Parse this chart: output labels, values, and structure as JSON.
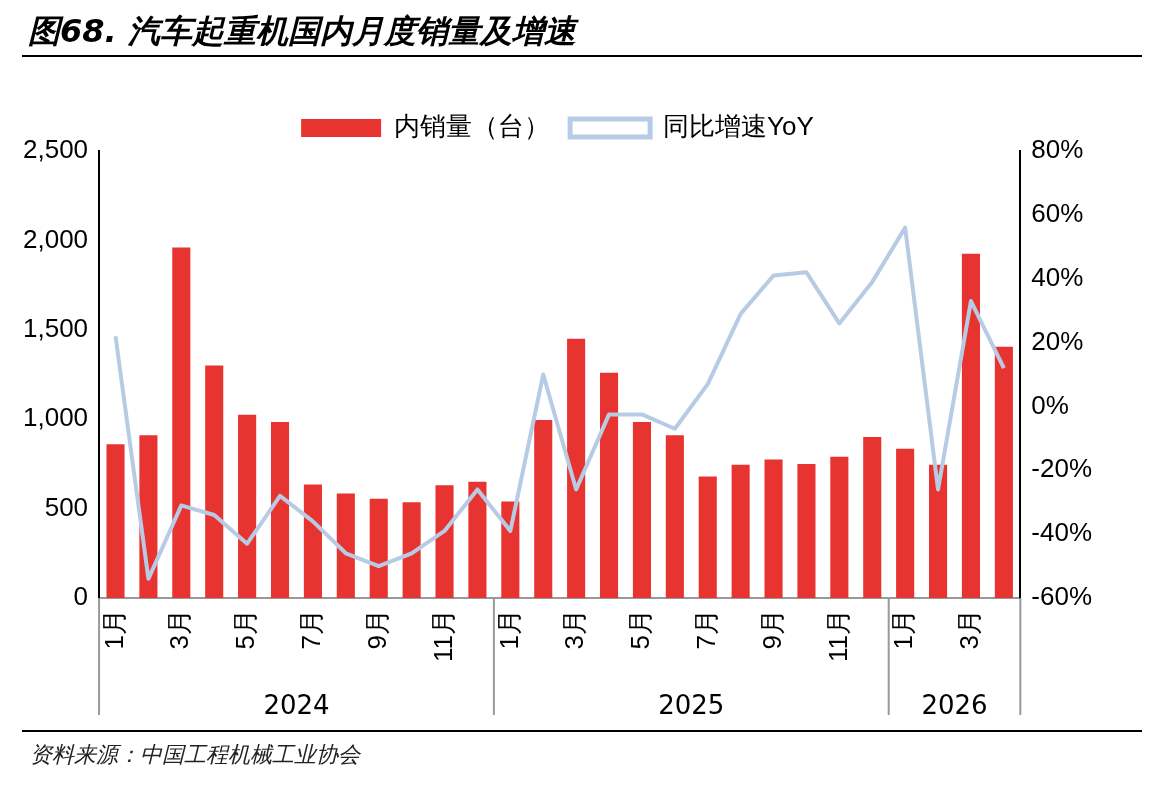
{
  "chart_data": {
    "type": "bar",
    "title": "图68. 汽车起重机国内月度销量及增速",
    "categories": [
      "1月",
      null,
      "3月",
      null,
      "5月",
      null,
      "7月",
      null,
      "9月",
      null,
      "11月",
      null,
      "1月",
      null,
      "3月",
      null,
      "5月",
      null,
      "7月",
      null,
      "9月",
      null,
      "11月",
      null,
      "1月",
      null,
      "3月",
      null
    ],
    "series": [
      {
        "name": "内销量（台）",
        "color": "#e83430",
        "values": [
          860,
          910,
          1960,
          1300,
          1025,
          985,
          635,
          585,
          555,
          535,
          630,
          650,
          540,
          995,
          1450,
          1260,
          985,
          910,
          680,
          745,
          775,
          750,
          790,
          900,
          835,
          745,
          1925,
          1405
        ]
      },
      {
        "name": "同比增速YoY",
        "type": "line",
        "axis": "y2",
        "color": "#b7cce4",
        "values": [
          22,
          -54,
          -31,
          -34,
          -43,
          -28,
          -36,
          -46,
          -50,
          -46,
          -39,
          -26,
          -39,
          10,
          -26,
          -2.5,
          -2.5,
          -7,
          7,
          29,
          41,
          42,
          26,
          39,
          56,
          -26,
          33,
          12
        ]
      }
    ],
    "ylim": [
      0,
      2500
    ],
    "yticks": [
      0,
      {
        "value": 500,
        "label": "500"
      },
      {
        "value": 1000,
        "label": "1,000"
      },
      {
        "value": 1500,
        "label": "1,500"
      },
      {
        "value": 2000,
        "label": "2,000"
      },
      {
        "value": 2500,
        "label": "2,500"
      }
    ],
    "y2lim": [
      -60,
      80
    ],
    "y2ticks": [
      {
        "value": -60,
        "label": "-60%"
      },
      {
        "value": -40,
        "label": "-40%"
      },
      {
        "value": -20,
        "label": "-20%"
      },
      {
        "value": 0,
        "label": "0%"
      },
      {
        "value": 20,
        "label": "20%"
      },
      {
        "value": 40,
        "label": "40%"
      },
      {
        "value": 60,
        "label": "60%"
      },
      {
        "value": 80,
        "label": "80%"
      }
    ],
    "grid": false,
    "legend": "top",
    "marker": "none",
    "line_style": "solid",
    "annotations": [
      "2024",
      "2025",
      "2026",
      "资料来源：中国工程机械工业协会"
    ]
  }
}
